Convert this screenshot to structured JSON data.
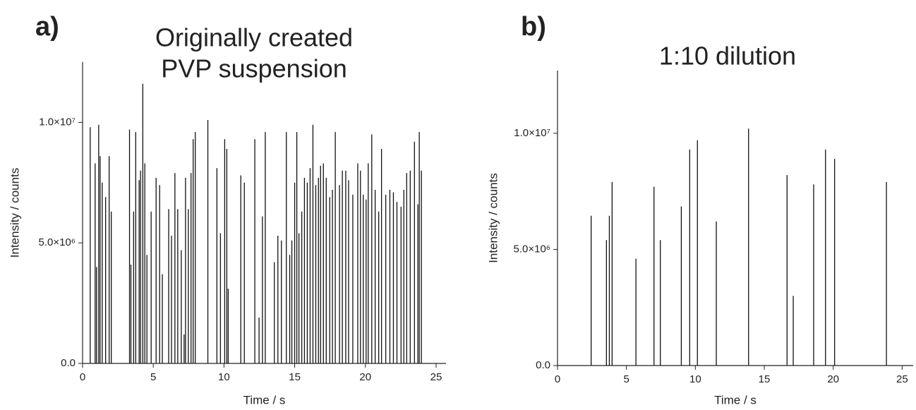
{
  "chart_data": [
    {
      "type": "bar",
      "panel": "a)",
      "title": [
        "Originally created",
        "PVP suspension"
      ],
      "x_label": "Time / s",
      "y_label": "Intensity / counts",
      "color": "#111111",
      "xlim": [
        0,
        25.7
      ],
      "ylim": [
        0,
        12500000
      ],
      "xticks": [
        0,
        5,
        10,
        15,
        20,
        25
      ],
      "yticks": [
        {
          "value": 0,
          "label": "0.0"
        },
        {
          "value": 5000000,
          "label": "5.0×10⁶"
        },
        {
          "value": 10000000,
          "label": "1.0×10⁷"
        }
      ],
      "x": [
        0.54,
        0.89,
        0.99,
        1.14,
        1.24,
        1.39,
        1.63,
        1.88,
        2.03,
        3.32,
        3.42,
        3.61,
        3.76,
        4.0,
        4.1,
        4.26,
        4.4,
        4.55,
        4.85,
        5.2,
        5.45,
        5.64,
        6.09,
        6.29,
        6.53,
        6.73,
        6.98,
        7.18,
        7.28,
        7.48,
        7.67,
        7.82,
        7.97,
        8.86,
        9.5,
        9.75,
        10.05,
        10.2,
        10.3,
        11.19,
        11.44,
        12.18,
        12.48,
        12.72,
        12.92,
        13.56,
        13.81,
        14.06,
        14.41,
        14.65,
        14.8,
        15.0,
        15.15,
        15.3,
        15.5,
        15.69,
        15.89,
        16.09,
        16.29,
        16.49,
        16.68,
        16.83,
        17.03,
        17.23,
        17.48,
        17.67,
        17.87,
        18.17,
        18.37,
        18.61,
        18.81,
        19.11,
        19.46,
        19.65,
        19.85,
        20.05,
        20.2,
        20.45,
        20.69,
        20.94,
        21.14,
        21.44,
        21.73,
        21.98,
        22.23,
        22.52,
        22.72,
        22.92,
        23.17,
        23.47,
        23.71,
        23.81,
        23.96
      ],
      "values": [
        9800000,
        8300000,
        4000000,
        9900000,
        8600000,
        7500000,
        6900000,
        8600000,
        6300000,
        9700000,
        4100000,
        6300000,
        9600000,
        7600000,
        8000000,
        11600000,
        8300000,
        4500000,
        6300000,
        7700000,
        7400000,
        3700000,
        6400000,
        5300000,
        7900000,
        6400000,
        4700000,
        1200000,
        7700000,
        6400000,
        7900000,
        9300000,
        9600000,
        10100000,
        8100000,
        5400000,
        9300000,
        8900000,
        3100000,
        7800000,
        7500000,
        9300000,
        1900000,
        6100000,
        9600000,
        4200000,
        5300000,
        5100000,
        9600000,
        4500000,
        5100000,
        7500000,
        9600000,
        5400000,
        6300000,
        7700000,
        7500000,
        8100000,
        9900000,
        7400000,
        7700000,
        8200000,
        8300000,
        7700000,
        6900000,
        7200000,
        9600000,
        7400000,
        8000000,
        8000000,
        7600000,
        7000000,
        8300000,
        8000000,
        7000000,
        6800000,
        8300000,
        9500000,
        7200000,
        6300000,
        8900000,
        7000000,
        7200000,
        7100000,
        6700000,
        6500000,
        7200000,
        7900000,
        8000000,
        9200000,
        6600000,
        9600000,
        8000000
      ]
    },
    {
      "type": "bar",
      "panel": "b)",
      "title": [
        "1:10 dilution"
      ],
      "x_label": "Time / s",
      "y_label": "Intensity / counts",
      "color": "#111111",
      "xlim": [
        0,
        25.8
      ],
      "ylim": [
        0,
        12700000
      ],
      "xticks": [
        0,
        5,
        10,
        15,
        20,
        25
      ],
      "yticks": [
        {
          "value": 0,
          "label": "0.0"
        },
        {
          "value": 5000000,
          "label": "5.0×10⁶"
        },
        {
          "value": 10000000,
          "label": "1.0×10⁷"
        }
      ],
      "x": [
        2.44,
        3.55,
        3.76,
        3.96,
        5.69,
        7.0,
        7.46,
        8.98,
        9.59,
        10.15,
        11.52,
        13.86,
        16.65,
        17.1,
        18.58,
        19.44,
        20.1,
        23.86
      ],
      "values": [
        6450000,
        5400000,
        6450000,
        7900000,
        4600000,
        7700000,
        5400000,
        6850000,
        9300000,
        9700000,
        6200000,
        10200000,
        8200000,
        3000000,
        7800000,
        9300000,
        8900000,
        7900000
      ]
    }
  ]
}
